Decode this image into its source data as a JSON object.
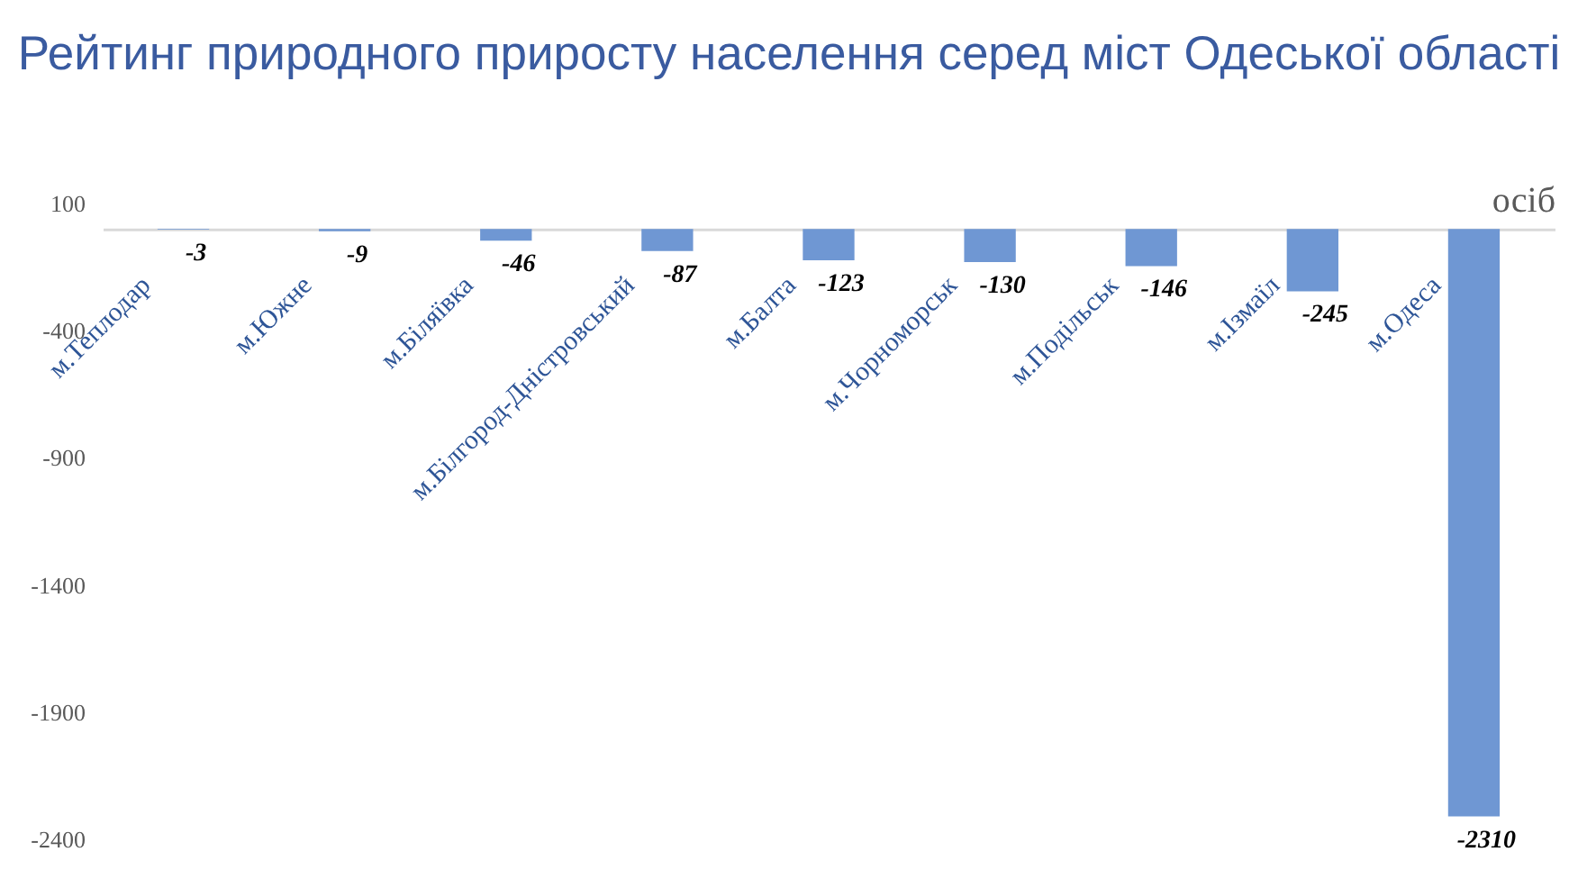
{
  "chart_data": {
    "type": "bar",
    "title": "Рейтинг природного приросту населення серед міст Одеської області",
    "ylabel": "осіб",
    "categories": [
      "м.Теплодар",
      "м.Южне",
      "м.Біляївка",
      "м.Білгород-Дністровський",
      "м.Балта",
      "м.Чорноморськ",
      "м.Подільськ",
      "м.Ізмаїл",
      "м.Одеса"
    ],
    "values": [
      -3,
      -9,
      -46,
      -87,
      -123,
      -130,
      -146,
      -245,
      -2310
    ],
    "color": "#6f97d3",
    "ylim": [
      -2400,
      100
    ],
    "yticks": [
      100,
      -400,
      -900,
      -1400,
      -1900,
      -2400
    ],
    "data_labels": true,
    "grid": false
  }
}
